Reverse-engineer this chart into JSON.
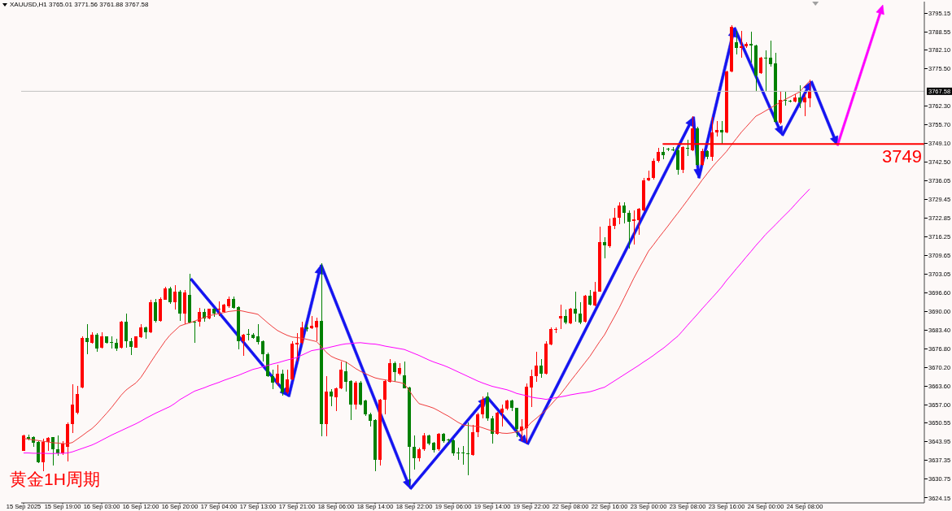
{
  "chart_data": {
    "type": "candlestick",
    "title": "XAUUSD,H1 3765.01 3771.56 3761.88 3767.58",
    "categories": [
      "15 Sep 2025",
      null,
      null,
      null,
      null,
      null,
      null,
      null,
      "15 Sep 19:00",
      null,
      null,
      null,
      null,
      null,
      null,
      null,
      "16 Sep 03:00",
      null,
      null,
      null,
      null,
      null,
      null,
      null,
      "16 Sep 12:00",
      null,
      null,
      null,
      null,
      null,
      null,
      null,
      "16 Sep 20:00",
      null,
      null,
      null,
      null,
      null,
      null,
      null,
      "17 Sep 04:00",
      null,
      null,
      null,
      null,
      null,
      null,
      null,
      "17 Sep 13:00",
      null,
      null,
      null,
      null,
      null,
      null,
      null,
      "17 Sep 21:00",
      null,
      null,
      null,
      null,
      null,
      null,
      null,
      "18 Sep 06:00",
      null,
      null,
      null,
      null,
      null,
      null,
      null,
      "18 Sep 14:00",
      null,
      null,
      null,
      null,
      null,
      null,
      null,
      "18 Sep 22:00",
      null,
      null,
      null,
      null,
      null,
      null,
      null,
      "19 Sep 06:00",
      null,
      null,
      null,
      null,
      null,
      null,
      null,
      "19 Sep 14:00",
      null,
      null,
      null,
      null,
      null,
      null,
      null,
      "19 Sep 22:00",
      null,
      null,
      null,
      null,
      null,
      null,
      null,
      "22 Sep 08:00",
      null,
      null,
      null,
      null,
      null,
      null,
      null,
      "22 Sep 16:00",
      null,
      null,
      null,
      null,
      null,
      null,
      null,
      "23 Sep 00:00",
      null,
      null,
      null,
      null,
      null,
      null,
      null,
      "23 Sep 08:00",
      null,
      null,
      null,
      null,
      null,
      null,
      null,
      "23 Sep 16:00",
      null,
      null,
      null,
      null,
      null,
      null,
      null,
      "24 Sep 00:00",
      null,
      null,
      null,
      null,
      null,
      null,
      null,
      "24 Sep 08:00",
      null
    ],
    "ohlc": [
      [
        3640.8,
        3646.5,
        3640.8,
        3646.3
      ],
      [
        3645.7,
        3646.5,
        3644.6,
        3645.0
      ],
      [
        3645.7,
        3646.0,
        3642.2,
        3643.6
      ],
      [
        3643.8,
        3644.1,
        3636.5,
        3636.8
      ],
      [
        3636.8,
        3645.1,
        3633.7,
        3643.8
      ],
      [
        3643.8,
        3645.6,
        3640.8,
        3645.4
      ],
      [
        3645.5,
        3645.7,
        3635.6,
        3641.3
      ],
      [
        3641.3,
        3646.3,
        3639.1,
        3639.8
      ],
      [
        3639.8,
        3644.1,
        3639.4,
        3643.2
      ],
      [
        3642.2,
        3650.8,
        3637.0,
        3650.3
      ],
      [
        3650.3,
        3664.1,
        3647.0,
        3657.0
      ],
      [
        3654.1,
        3663.6,
        3653.6,
        3660.8
      ],
      [
        3663.2,
        3681.2,
        3662.9,
        3680.6
      ],
      [
        3680.6,
        3685.5,
        3674.9,
        3679.0
      ],
      [
        3678.9,
        3682.7,
        3678.7,
        3681.7
      ],
      [
        3681.7,
        3682.2,
        3675.8,
        3676.8
      ],
      [
        3677.0,
        3682.7,
        3676.8,
        3681.0
      ],
      [
        3681.0,
        3681.2,
        3678.7,
        3678.9
      ],
      [
        3679.1,
        3681.2,
        3676.8,
        3678.9
      ],
      [
        3678.9,
        3680.3,
        3676.0,
        3676.8
      ],
      [
        3677.0,
        3686.7,
        3676.8,
        3686.3
      ],
      [
        3686.3,
        3689.3,
        3677.0,
        3679.3
      ],
      [
        3679.3,
        3680.6,
        3674.6,
        3677.4
      ],
      [
        3677.1,
        3681.2,
        3677.0,
        3681.0
      ],
      [
        3680.8,
        3685.3,
        3680.6,
        3684.4
      ],
      [
        3684.4,
        3684.6,
        3680.3,
        3682.7
      ],
      [
        3682.7,
        3693.9,
        3682.2,
        3693.3
      ],
      [
        3693.3,
        3694.3,
        3686.0,
        3686.5
      ],
      [
        3686.5,
        3695.0,
        3686.3,
        3694.3
      ],
      [
        3694.1,
        3698.7,
        3693.9,
        3698.1
      ],
      [
        3698.1,
        3698.7,
        3692.7,
        3693.1
      ],
      [
        3693.1,
        3699.3,
        3690.5,
        3697.0
      ],
      [
        3697.0,
        3697.4,
        3686.5,
        3689.3
      ],
      [
        3689.2,
        3697.5,
        3685.5,
        3696.5
      ],
      [
        3695.8,
        3703.1,
        3685.8,
        3686.0
      ],
      [
        3686.3,
        3686.5,
        3678.9,
        3686.1
      ],
      [
        3686.3,
        3691.2,
        3684.6,
        3689.8
      ],
      [
        3689.8,
        3690.8,
        3686.3,
        3687.4
      ],
      [
        3687.4,
        3691.0,
        3687.2,
        3690.8
      ],
      [
        3690.8,
        3690.9,
        3687.9,
        3689.3
      ],
      [
        3690.7,
        3693.6,
        3688.4,
        3690.8
      ],
      [
        3689.8,
        3692.5,
        3689.5,
        3692.2
      ],
      [
        3691.7,
        3695.2,
        3691.2,
        3694.3
      ],
      [
        3694.3,
        3695.2,
        3691.0,
        3691.2
      ],
      [
        3691.4,
        3691.7,
        3676.5,
        3679.3
      ],
      [
        3679.3,
        3681.9,
        3674.3,
        3681.7
      ],
      [
        3681.9,
        3683.6,
        3679.8,
        3681.7
      ],
      [
        3681.7,
        3682.2,
        3680.3,
        3680.6
      ],
      [
        3681.0,
        3685.5,
        3678.4,
        3679.1
      ],
      [
        3679.3,
        3679.8,
        3672.2,
        3674.9
      ],
      [
        3674.9,
        3675.3,
        3666.7,
        3667.0
      ],
      [
        3667.0,
        3669.4,
        3662.5,
        3664.8
      ],
      [
        3664.8,
        3671.1,
        3663.8,
        3667.9
      ],
      [
        3667.9,
        3669.4,
        3660.3,
        3661.3
      ],
      [
        3661.3,
        3669.4,
        3660.8,
        3666.0
      ],
      [
        3666.0,
        3679.3,
        3665.7,
        3678.7
      ],
      [
        3678.4,
        3682.2,
        3672.2,
        3678.9
      ],
      [
        3678.9,
        3686.3,
        3678.4,
        3684.4
      ],
      [
        3684.4,
        3685.5,
        3682.9,
        3683.8
      ],
      [
        3684.1,
        3688.4,
        3683.8,
        3684.8
      ],
      [
        3684.4,
        3687.6,
        3679.3,
        3686.7
      ],
      [
        3686.7,
        3706.9,
        3646.0,
        3650.3
      ],
      [
        3650.3,
        3667.0,
        3646.0,
        3661.7
      ],
      [
        3661.7,
        3662.5,
        3656.5,
        3660.0
      ],
      [
        3659.6,
        3663.2,
        3654.9,
        3662.9
      ],
      [
        3662.9,
        3672.2,
        3662.5,
        3669.4
      ],
      [
        3668.9,
        3672.2,
        3661.7,
        3665.1
      ],
      [
        3665.5,
        3665.6,
        3651.7,
        3657.0
      ],
      [
        3657.0,
        3665.5,
        3655.3,
        3664.8
      ],
      [
        3664.8,
        3665.5,
        3656.8,
        3657.0
      ],
      [
        3658.4,
        3658.9,
        3653.2,
        3653.7
      ],
      [
        3653.7,
        3654.1,
        3649.4,
        3651.3
      ],
      [
        3651.7,
        3651.9,
        3633.7,
        3637.5
      ],
      [
        3637.5,
        3659.1,
        3635.6,
        3658.9
      ],
      [
        3658.9,
        3666.0,
        3653.6,
        3665.5
      ],
      [
        3665.1,
        3673.2,
        3664.8,
        3671.7
      ],
      [
        3671.7,
        3672.2,
        3665.1,
        3668.4
      ],
      [
        3667.9,
        3671.7,
        3667.4,
        3670.0
      ],
      [
        3667.4,
        3672.4,
        3662.7,
        3662.9
      ],
      [
        3663.2,
        3663.4,
        3628.6,
        3642.2
      ],
      [
        3642.2,
        3646.3,
        3634.1,
        3638.1
      ],
      [
        3638.1,
        3641.8,
        3637.0,
        3641.3
      ],
      [
        3641.3,
        3647.0,
        3640.8,
        3646.3
      ],
      [
        3646.3,
        3646.5,
        3642.7,
        3643.2
      ],
      [
        3643.7,
        3643.9,
        3640.3,
        3641.0
      ],
      [
        3641.3,
        3647.0,
        3640.8,
        3646.7
      ],
      [
        3646.7,
        3647.0,
        3643.7,
        3644.1
      ],
      [
        3644.7,
        3645.1,
        3643.7,
        3644.6
      ],
      [
        3644.6,
        3644.8,
        3638.9,
        3640.0
      ],
      [
        3640.1,
        3641.8,
        3637.5,
        3640.0
      ],
      [
        3640.1,
        3642.5,
        3636.0,
        3640.0
      ],
      [
        3640.0,
        3650.8,
        3632.2,
        3639.9
      ],
      [
        3639.4,
        3649.9,
        3638.9,
        3647.3
      ],
      [
        3647.3,
        3654.1,
        3645.6,
        3653.7
      ],
      [
        3653.7,
        3660.0,
        3652.2,
        3658.9
      ],
      [
        3660.0,
        3661.3,
        3651.3,
        3652.2
      ],
      [
        3652.2,
        3653.2,
        3643.2,
        3646.7
      ],
      [
        3646.7,
        3654.6,
        3646.5,
        3654.1
      ],
      [
        3654.1,
        3657.0,
        3649.4,
        3655.6
      ],
      [
        3655.6,
        3658.9,
        3655.1,
        3658.4
      ],
      [
        3658.4,
        3658.9,
        3654.9,
        3655.8
      ],
      [
        3655.8,
        3656.0,
        3645.6,
        3648.4
      ],
      [
        3648.0,
        3651.8,
        3644.1,
        3649.2
      ],
      [
        3648.9,
        3664.6,
        3643.7,
        3663.5
      ],
      [
        3663.2,
        3669.4,
        3656.2,
        3667.0
      ],
      [
        3667.0,
        3675.8,
        3665.1,
        3670.8
      ],
      [
        3670.8,
        3673.2,
        3666.5,
        3667.9
      ],
      [
        3667.9,
        3679.4,
        3667.7,
        3678.7
      ],
      [
        3678.4,
        3684.4,
        3678.1,
        3683.8
      ],
      [
        3683.6,
        3684.4,
        3682.2,
        3683.8
      ],
      [
        3687.4,
        3692.2,
        3683.6,
        3688.4
      ],
      [
        3688.4,
        3690.5,
        3685.5,
        3686.0
      ],
      [
        3685.7,
        3691.1,
        3685.5,
        3690.8
      ],
      [
        3690.8,
        3696.8,
        3686.3,
        3689.2
      ],
      [
        3689.3,
        3693.3,
        3685.5,
        3686.0
      ],
      [
        3686.3,
        3695.8,
        3685.9,
        3695.5
      ],
      [
        3695.5,
        3697.4,
        3692.0,
        3692.2
      ],
      [
        3692.0,
        3700.3,
        3691.7,
        3697.0
      ],
      [
        3697.0,
        3719.8,
        3696.8,
        3714.3
      ],
      [
        3714.5,
        3716.2,
        3708.6,
        3713.1
      ],
      [
        3712.9,
        3722.7,
        3712.4,
        3720.0
      ],
      [
        3720.0,
        3726.5,
        3719.0,
        3723.1
      ],
      [
        3723.1,
        3728.4,
        3720.7,
        3727.4
      ],
      [
        3727.4,
        3728.4,
        3720.9,
        3724.6
      ],
      [
        3724.6,
        3725.5,
        3712.2,
        3721.5
      ],
      [
        3721.7,
        3725.5,
        3713.6,
        3722.5
      ],
      [
        3722.2,
        3726.5,
        3716.9,
        3726.0
      ],
      [
        3725.7,
        3736.9,
        3725.3,
        3736.2
      ],
      [
        3736.2,
        3739.6,
        3735.8,
        3736.9
      ],
      [
        3736.9,
        3744.0,
        3736.5,
        3743.0
      ],
      [
        3743.0,
        3747.6,
        3742.5,
        3746.2
      ],
      [
        3746.2,
        3747.9,
        3743.5,
        3745.0
      ],
      [
        3747.2,
        3747.6,
        3746.5,
        3747.1
      ],
      [
        3747.0,
        3748.0,
        3746.4,
        3746.9
      ],
      [
        3746.9,
        3747.9,
        3738.3,
        3739.8
      ],
      [
        3739.8,
        3748.3,
        3738.8,
        3747.9
      ],
      [
        3747.6,
        3750.4,
        3744.7,
        3747.5
      ],
      [
        3746.9,
        3758.8,
        3746.4,
        3754.5
      ],
      [
        3754.5,
        3755.0,
        3741.2,
        3741.7
      ],
      [
        3741.7,
        3747.4,
        3741.2,
        3746.6
      ],
      [
        3746.4,
        3746.9,
        3743.6,
        3744.5
      ],
      [
        3744.5,
        3758.6,
        3743.1,
        3753.1
      ],
      [
        3753.1,
        3757.1,
        3751.7,
        3753.9
      ],
      [
        3753.9,
        3757.1,
        3748.8,
        3753.1
      ],
      [
        3753.1,
        3774.8,
        3752.9,
        3774.5
      ],
      [
        3774.5,
        3791.0,
        3774.2,
        3790.2
      ],
      [
        3785.0,
        3788.8,
        3780.7,
        3782.8
      ],
      [
        3782.8,
        3788.8,
        3779.3,
        3783.5
      ],
      [
        3783.4,
        3785.0,
        3782.8,
        3784.3
      ],
      [
        3784.3,
        3788.5,
        3777.8,
        3783.7
      ],
      [
        3783.7,
        3784.0,
        3767.6,
        3773.1
      ],
      [
        3774.0,
        3779.7,
        3773.6,
        3779.3
      ],
      [
        3779.3,
        3782.1,
        3767.6,
        3779.2
      ],
      [
        3779.3,
        3785.5,
        3776.4,
        3777.1
      ],
      [
        3777.4,
        3781.2,
        3756.4,
        3756.7
      ],
      [
        3756.4,
        3767.8,
        3755.9,
        3764.5
      ],
      [
        3764.4,
        3767.4,
        3762.6,
        3764.3
      ],
      [
        3764.1,
        3764.5,
        3763.6,
        3764.0
      ],
      [
        3764.0,
        3766.4,
        3763.6,
        3765.5
      ],
      [
        3765.5,
        3769.8,
        3761.7,
        3763.8
      ],
      [
        3763.8,
        3766.9,
        3758.8,
        3765.3
      ],
      [
        3765.01,
        3771.56,
        3761.88,
        3767.58
      ]
    ],
    "colors": [
      "#ff0000",
      "#008000",
      "#008000",
      "#008000",
      "#ff0000",
      "#ff0000",
      "#008000",
      "#008000",
      "#ff0000",
      "#ff0000",
      "#ff0000",
      "#ff0000",
      "#ff0000",
      "#008000",
      "#ff0000",
      "#008000",
      "#ff0000",
      "#008000",
      "#008000",
      "#008000",
      "#ff0000",
      "#008000",
      "#008000",
      "#ff0000",
      "#ff0000",
      "#008000",
      "#ff0000",
      "#008000",
      "#ff0000",
      "#ff0000",
      "#008000",
      "#ff0000",
      "#008000",
      "#ff0000",
      "#008000",
      "#008000",
      "#ff0000",
      "#008000",
      "#ff0000",
      "#008000",
      "#ff0000",
      "#ff0000",
      "#ff0000",
      "#008000",
      "#008000",
      "#ff0000",
      "#008000",
      "#008000",
      "#008000",
      "#008000",
      "#008000",
      "#008000",
      "#ff0000",
      "#008000",
      "#ff0000",
      "#ff0000",
      "#ff0000",
      "#ff0000",
      "#008000",
      "#ff0000",
      "#ff0000",
      "#008000",
      "#ff0000",
      "#008000",
      "#ff0000",
      "#ff0000",
      "#008000",
      "#008000",
      "#ff0000",
      "#008000",
      "#008000",
      "#008000",
      "#008000",
      "#ff0000",
      "#ff0000",
      "#ff0000",
      "#008000",
      "#ff0000",
      "#008000",
      "#008000",
      "#008000",
      "#ff0000",
      "#ff0000",
      "#008000",
      "#008000",
      "#ff0000",
      "#008000",
      "#008000",
      "#008000",
      "#008000",
      "#008000",
      "#008000",
      "#ff0000",
      "#ff0000",
      "#ff0000",
      "#008000",
      "#008000",
      "#ff0000",
      "#ff0000",
      "#ff0000",
      "#008000",
      "#008000",
      "#ff0000",
      "#ff0000",
      "#ff0000",
      "#ff0000",
      "#008000",
      "#ff0000",
      "#ff0000",
      "#ff0000",
      "#ff0000",
      "#008000",
      "#ff0000",
      "#008000",
      "#008000",
      "#ff0000",
      "#008000",
      "#ff0000",
      "#ff0000",
      "#008000",
      "#ff0000",
      "#ff0000",
      "#ff0000",
      "#008000",
      "#008000",
      "#ff0000",
      "#ff0000",
      "#ff0000",
      "#ff0000",
      "#ff0000",
      "#ff0000",
      "#008000",
      "#008000",
      "#008000",
      "#008000",
      "#ff0000",
      "#008000",
      "#ff0000",
      "#008000",
      "#ff0000",
      "#008000",
      "#ff0000",
      "#ff0000",
      "#008000",
      "#ff0000",
      "#ff0000",
      "#008000",
      "#ff0000",
      "#ff0000",
      "#008000",
      "#008000",
      "#ff0000",
      "#008000",
      "#008000",
      "#008000",
      "#ff0000",
      "#008000",
      "#008000",
      "#ff0000",
      "#008000",
      "#ff0000",
      "#ff0000"
    ],
    "series": [
      {
        "type": "line",
        "color": "#f03c3c",
        "values": [
          3645.1,
          3644.9,
          3644.6,
          3644.4,
          3644.1,
          3643.9,
          3643.6,
          3643.5,
          3643.3,
          3643.3,
          3643.7,
          3644.9,
          3646.1,
          3647.4,
          3648.6,
          3650.2,
          3652.1,
          3654.0,
          3656.0,
          3658.2,
          3660.4,
          3662.2,
          3663.5,
          3664.7,
          3666.6,
          3669.2,
          3671.9,
          3674.5,
          3677.0,
          3679.5,
          3681.6,
          3683.2,
          3684.8,
          3685.4,
          3685.9,
          3686.5,
          3687.2,
          3687.8,
          3688.4,
          3688.8,
          3689.2,
          3689.5,
          3689.9,
          3690.1,
          3690.3,
          3690.0,
          3689.6,
          3689.3,
          3688.9,
          3687.4,
          3685.9,
          3684.5,
          3683.2,
          3682.3,
          3681.5,
          3680.9,
          3680.7,
          3680.5,
          3680.1,
          3679.7,
          3679.3,
          3677.5,
          3675.5,
          3674.1,
          3673.3,
          3672.7,
          3672.1,
          3671.0,
          3669.8,
          3668.8,
          3668.0,
          3667.2,
          3666.5,
          3666.1,
          3665.8,
          3665.5,
          3665.2,
          3664.9,
          3664.4,
          3662.0,
          3659.5,
          3657.4,
          3656.9,
          3656.4,
          3655.8,
          3654.9,
          3653.9,
          3653.0,
          3651.9,
          3650.8,
          3649.9,
          3649.7,
          3649.5,
          3649.4,
          3648.9,
          3648.3,
          3647.8,
          3647.4,
          3647.0,
          3646.9,
          3647.1,
          3647.5,
          3647.8,
          3648.9,
          3650.8,
          3652.2,
          3653.7,
          3655.1,
          3657.0,
          3658.9,
          3660.8,
          3663.0,
          3665.3,
          3667.5,
          3669.7,
          3671.9,
          3674.1,
          3676.7,
          3679.3,
          3681.7,
          3684.9,
          3688.0,
          3691.2,
          3694.7,
          3698.2,
          3701.7,
          3704.9,
          3708.0,
          3711.2,
          3713.4,
          3715.7,
          3717.9,
          3720.1,
          3722.4,
          3724.6,
          3726.9,
          3729.2,
          3731.6,
          3733.9,
          3736.3,
          3738.5,
          3740.7,
          3742.7,
          3744.5,
          3746.4,
          3748.7,
          3750.9,
          3753.1,
          3755.0,
          3756.9,
          3758.8,
          3759.7,
          3760.7,
          3761.7,
          3762.7,
          3763.7,
          3764.7,
          3765.6,
          3766.5,
          3767.4,
          3769.4,
          3771.2
        ]
      },
      {
        "type": "line",
        "color": "#ff00ff",
        "values": [
          3640.0,
          3640.0,
          3639.9,
          3639.9,
          3639.9,
          3639.8,
          3639.8,
          3639.9,
          3639.9,
          3640.0,
          3640.4,
          3641.0,
          3641.6,
          3642.2,
          3642.8,
          3643.6,
          3644.5,
          3645.4,
          3646.3,
          3647.1,
          3647.9,
          3648.7,
          3649.5,
          3650.3,
          3651.2,
          3652.2,
          3653.1,
          3654.0,
          3654.8,
          3655.6,
          3656.4,
          3657.5,
          3658.8,
          3659.8,
          3660.8,
          3661.8,
          3662.4,
          3663.0,
          3663.7,
          3664.3,
          3664.9,
          3665.6,
          3666.2,
          3666.8,
          3667.4,
          3668.1,
          3668.8,
          3669.5,
          3669.9,
          3670.4,
          3670.9,
          3671.4,
          3671.8,
          3672.3,
          3672.8,
          3673.2,
          3673.7,
          3674.5,
          3675.3,
          3676.1,
          3676.4,
          3676.7,
          3677.0,
          3677.4,
          3677.8,
          3678.2,
          3678.5,
          3678.6,
          3678.8,
          3678.9,
          3678.7,
          3678.5,
          3678.4,
          3678.1,
          3677.7,
          3677.4,
          3677.1,
          3676.8,
          3676.5,
          3675.8,
          3675.1,
          3674.4,
          3673.6,
          3672.8,
          3672.1,
          3671.5,
          3670.9,
          3670.2,
          3669.4,
          3668.6,
          3667.8,
          3667.0,
          3666.2,
          3665.4,
          3664.7,
          3664.1,
          3663.5,
          3663.1,
          3662.7,
          3662.3,
          3661.7,
          3661.0,
          3660.6,
          3660.2,
          3659.7,
          3659.4,
          3659.2,
          3658.9,
          3659.2,
          3659.5,
          3659.8,
          3660.1,
          3660.5,
          3660.8,
          3661.1,
          3661.3,
          3661.6,
          3662.1,
          3662.7,
          3663.2,
          3664.3,
          3665.4,
          3666.5,
          3667.6,
          3668.7,
          3669.8,
          3670.9,
          3672.1,
          3673.2,
          3674.4,
          3675.7,
          3676.9,
          3678.3,
          3679.8,
          3681.2,
          3683.1,
          3685.1,
          3687.0,
          3688.9,
          3690.9,
          3692.8,
          3694.7,
          3696.6,
          3698.6,
          3700.9,
          3702.9,
          3705.0,
          3707.0,
          3709.1,
          3711.1,
          3713.2,
          3715.1,
          3717.1,
          3718.8,
          3720.5,
          3722.3,
          3724.0,
          3725.7,
          3727.6,
          3729.5,
          3731.3,
          3733.1
        ]
      }
    ],
    "ylim": [
      3622.4,
      3799.2
    ],
    "yticks": [
      {
        "value": 3624.15,
        "label": "3624.15"
      },
      {
        "value": 3630.75,
        "label": "3630.75"
      },
      {
        "value": 3637.35,
        "label": "3637.35"
      },
      {
        "value": 3643.95,
        "label": "3643.95"
      },
      {
        "value": 3650.55,
        "label": "3650.55"
      },
      {
        "value": 3657.0,
        "label": "3657.00"
      },
      {
        "value": 3663.6,
        "label": "3663.60"
      },
      {
        "value": 3670.2,
        "label": "3670.20"
      },
      {
        "value": 3676.8,
        "label": "3676.80"
      },
      {
        "value": 3683.4,
        "label": "3683.40"
      },
      {
        "value": 3690.0,
        "label": "3690.00"
      },
      {
        "value": 3696.6,
        "label": "3696.60"
      },
      {
        "value": 3703.05,
        "label": "3703.05"
      },
      {
        "value": 3709.65,
        "label": "3709.65"
      },
      {
        "value": 3716.25,
        "label": "3716.25"
      },
      {
        "value": 3722.85,
        "label": "3722.85"
      },
      {
        "value": 3729.45,
        "label": "3729.45"
      },
      {
        "value": 3736.05,
        "label": "3736.05"
      },
      {
        "value": 3742.5,
        "label": "3742.50"
      },
      {
        "value": 3749.1,
        "label": "3749.10"
      },
      {
        "value": 3755.7,
        "label": "3755.70"
      },
      {
        "value": 3762.3,
        "label": "3762.30"
      },
      {
        "value": 3775.5,
        "label": "3775.50"
      },
      {
        "value": 3782.1,
        "label": "3782.10"
      },
      {
        "value": 3788.55,
        "label": "3788.55"
      },
      {
        "value": 3795.15,
        "label": "3795.15"
      }
    ],
    "ref_lines": [
      {
        "axis": "y",
        "value": 3749,
        "label": "3749",
        "color": "#ff0000"
      },
      {
        "axis": "y",
        "value": 3767.58,
        "label": "3767.58",
        "color": "#c0c0c0"
      }
    ],
    "annotations": [
      "黄金1H周期"
    ]
  }
}
